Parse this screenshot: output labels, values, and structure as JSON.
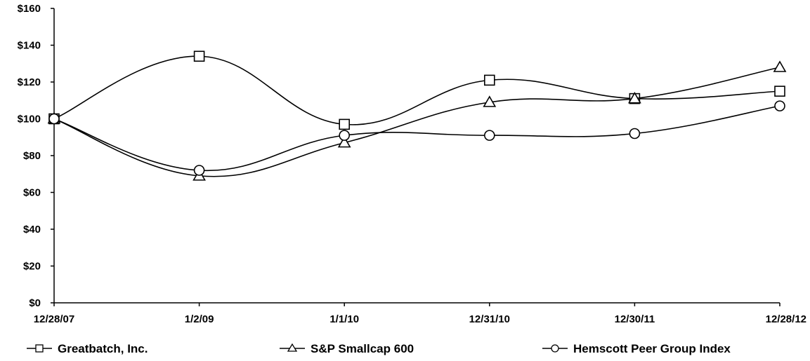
{
  "chart_data": {
    "type": "line",
    "title": "",
    "xlabel": "",
    "ylabel": "",
    "categories": [
      "12/28/07",
      "1/2/09",
      "1/1/10",
      "12/31/10",
      "12/30/11",
      "12/28/12"
    ],
    "ylim": [
      0,
      160
    ],
    "yticks": [
      0,
      20,
      40,
      60,
      80,
      100,
      120,
      140,
      160
    ],
    "ytick_labels": [
      "$0",
      "$20",
      "$40",
      "$60",
      "$80",
      "$100",
      "$120",
      "$140",
      "$160"
    ],
    "grid": false,
    "legend_position": "bottom",
    "series": [
      {
        "name": "Greatbatch, Inc.",
        "marker": "square",
        "values": [
          100,
          134,
          97,
          121,
          111,
          115
        ]
      },
      {
        "name": "S&P Smallcap 600",
        "marker": "triangle",
        "values": [
          100,
          69,
          87,
          109,
          111,
          128
        ]
      },
      {
        "name": "Hemscott Peer Group Index",
        "marker": "circle",
        "values": [
          100,
          72,
          91,
          91,
          92,
          107
        ]
      }
    ],
    "colors": {
      "line": "#000000",
      "marker_fill": "#ffffff",
      "background": "#ffffff"
    }
  }
}
